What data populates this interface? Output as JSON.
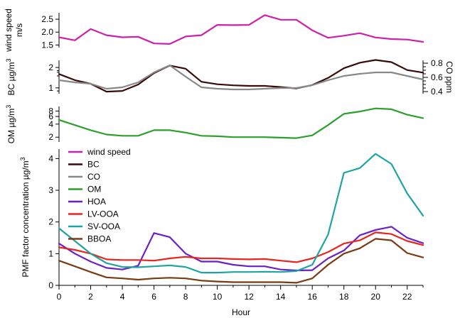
{
  "chart_data": {
    "type": "line",
    "x": [
      0,
      1,
      2,
      3,
      4,
      5,
      6,
      7,
      8,
      9,
      10,
      11,
      12,
      13,
      14,
      15,
      16,
      17,
      18,
      19,
      20,
      21,
      22,
      23
    ],
    "xlabel": "Hour",
    "x_ticks": [
      "0",
      "2",
      "4",
      "6",
      "8",
      "10",
      "12",
      "14",
      "16",
      "18",
      "20",
      "22"
    ],
    "panels": [
      {
        "id": "wind",
        "ylabel_line1": "wind speed",
        "ylabel_line2": "m/s",
        "yscale": "linear",
        "ylim": [
          1.4,
          2.75
        ],
        "y_ticks": [
          "1.5",
          "2.0",
          "2.5"
        ],
        "series": [
          {
            "name": "wind speed",
            "color": "#cc22aa",
            "values": [
              1.8,
              1.68,
              2.12,
              1.88,
              1.8,
              1.82,
              1.56,
              1.54,
              1.83,
              1.88,
              2.28,
              2.27,
              2.28,
              2.66,
              2.48,
              2.48,
              2.07,
              1.78,
              1.86,
              1.96,
              1.79,
              1.73,
              1.71,
              1.62
            ]
          }
        ]
      },
      {
        "id": "bc_co",
        "ylabel": "BC µg/m",
        "ylabel_sup": "3",
        "ylabel_right": "CO ppm",
        "yscale": "log",
        "ylim": [
          0.82,
          2.55
        ],
        "y_ticks": [
          "1",
          "2"
        ],
        "y2lim": [
          0.37,
          0.84
        ],
        "y2_ticks": [
          "0.4",
          "0.6",
          "0.8"
        ],
        "series": [
          {
            "name": "BC",
            "color": "#3a0a0a",
            "axis": "left",
            "values": [
              1.6,
              1.3,
              1.15,
              0.88,
              0.9,
              1.12,
              1.65,
              2.14,
              1.92,
              1.23,
              1.13,
              1.09,
              1.07,
              1.07,
              1.03,
              0.98,
              1.1,
              1.4,
              1.95,
              2.35,
              2.58,
              2.4,
              1.83,
              1.68
            ]
          },
          {
            "name": "CO",
            "color": "#888888",
            "axis": "right",
            "values": [
              0.56,
              0.53,
              0.51,
              0.44,
              0.46,
              0.53,
              0.67,
              0.77,
              0.61,
              0.46,
              0.44,
              0.43,
              0.43,
              0.44,
              0.45,
              0.45,
              0.49,
              0.56,
              0.62,
              0.65,
              0.67,
              0.67,
              0.62,
              0.57
            ]
          }
        ]
      },
      {
        "id": "om",
        "ylabel": "OM µg/m",
        "ylabel_sup": "3",
        "yscale": "log",
        "ylim": [
          1.55,
          10.2
        ],
        "y_ticks": [
          "2",
          "4",
          "6",
          "8"
        ],
        "series": [
          {
            "name": "OM",
            "color": "#2ca02c",
            "values": [
              5.0,
              3.8,
              2.9,
              2.3,
              2.15,
              2.15,
              2.9,
              2.9,
              2.55,
              2.15,
              2.1,
              2.0,
              2.0,
              2.0,
              1.95,
              1.9,
              2.2,
              3.8,
              6.9,
              7.8,
              9.2,
              8.8,
              6.6,
              5.5
            ]
          }
        ]
      },
      {
        "id": "pmf",
        "ylabel": "PMF factor concentration µg/m",
        "ylabel_sup": "3",
        "yscale": "linear",
        "ylim": [
          0,
          4.3
        ],
        "y_ticks": [
          "0",
          "1",
          "2",
          "3",
          "4"
        ],
        "series": [
          {
            "name": "HOA",
            "color": "#6a1fc9",
            "values": [
              1.32,
              1.0,
              0.75,
              0.55,
              0.5,
              0.62,
              1.65,
              1.52,
              1.0,
              0.75,
              0.75,
              0.65,
              0.6,
              0.6,
              0.5,
              0.47,
              0.48,
              0.85,
              1.1,
              1.58,
              1.75,
              1.85,
              1.5,
              1.33
            ]
          },
          {
            "name": "LV-OOA",
            "color": "#e8251f",
            "values": [
              1.2,
              1.12,
              1.0,
              0.82,
              0.8,
              0.8,
              0.78,
              0.85,
              0.9,
              0.85,
              0.85,
              0.83,
              0.82,
              0.83,
              0.78,
              0.73,
              0.85,
              1.05,
              1.32,
              1.42,
              1.67,
              1.62,
              1.4,
              1.27
            ]
          },
          {
            "name": "SV-OOA",
            "color": "#1fa3a3",
            "values": [
              1.8,
              1.4,
              1.0,
              0.7,
              0.58,
              0.57,
              0.6,
              0.63,
              0.58,
              0.4,
              0.4,
              0.42,
              0.42,
              0.43,
              0.42,
              0.45,
              0.65,
              1.6,
              3.55,
              3.7,
              4.15,
              3.83,
              2.9,
              2.2
            ]
          },
          {
            "name": "BBOA",
            "color": "#7a3a12",
            "values": [
              0.78,
              0.6,
              0.42,
              0.25,
              0.22,
              0.18,
              0.22,
              0.24,
              0.22,
              0.15,
              0.12,
              0.1,
              0.1,
              0.1,
              0.1,
              0.08,
              0.22,
              0.65,
              1.0,
              1.17,
              1.47,
              1.42,
              1.02,
              0.88
            ]
          }
        ]
      }
    ],
    "legend": {
      "placement": "top-left of PMF panel",
      "entries": [
        {
          "name": "wind speed",
          "color": "#cc22aa"
        },
        {
          "name": "BC",
          "color": "#3a0a0a"
        },
        {
          "name": "CO",
          "color": "#888888"
        },
        {
          "name": "OM",
          "color": "#2ca02c"
        },
        {
          "name": "HOA",
          "color": "#6a1fc9"
        },
        {
          "name": "LV-OOA",
          "color": "#e8251f"
        },
        {
          "name": "SV-OOA",
          "color": "#1fa3a3"
        },
        {
          "name": "BBOA",
          "color": "#7a3a12"
        }
      ]
    }
  }
}
